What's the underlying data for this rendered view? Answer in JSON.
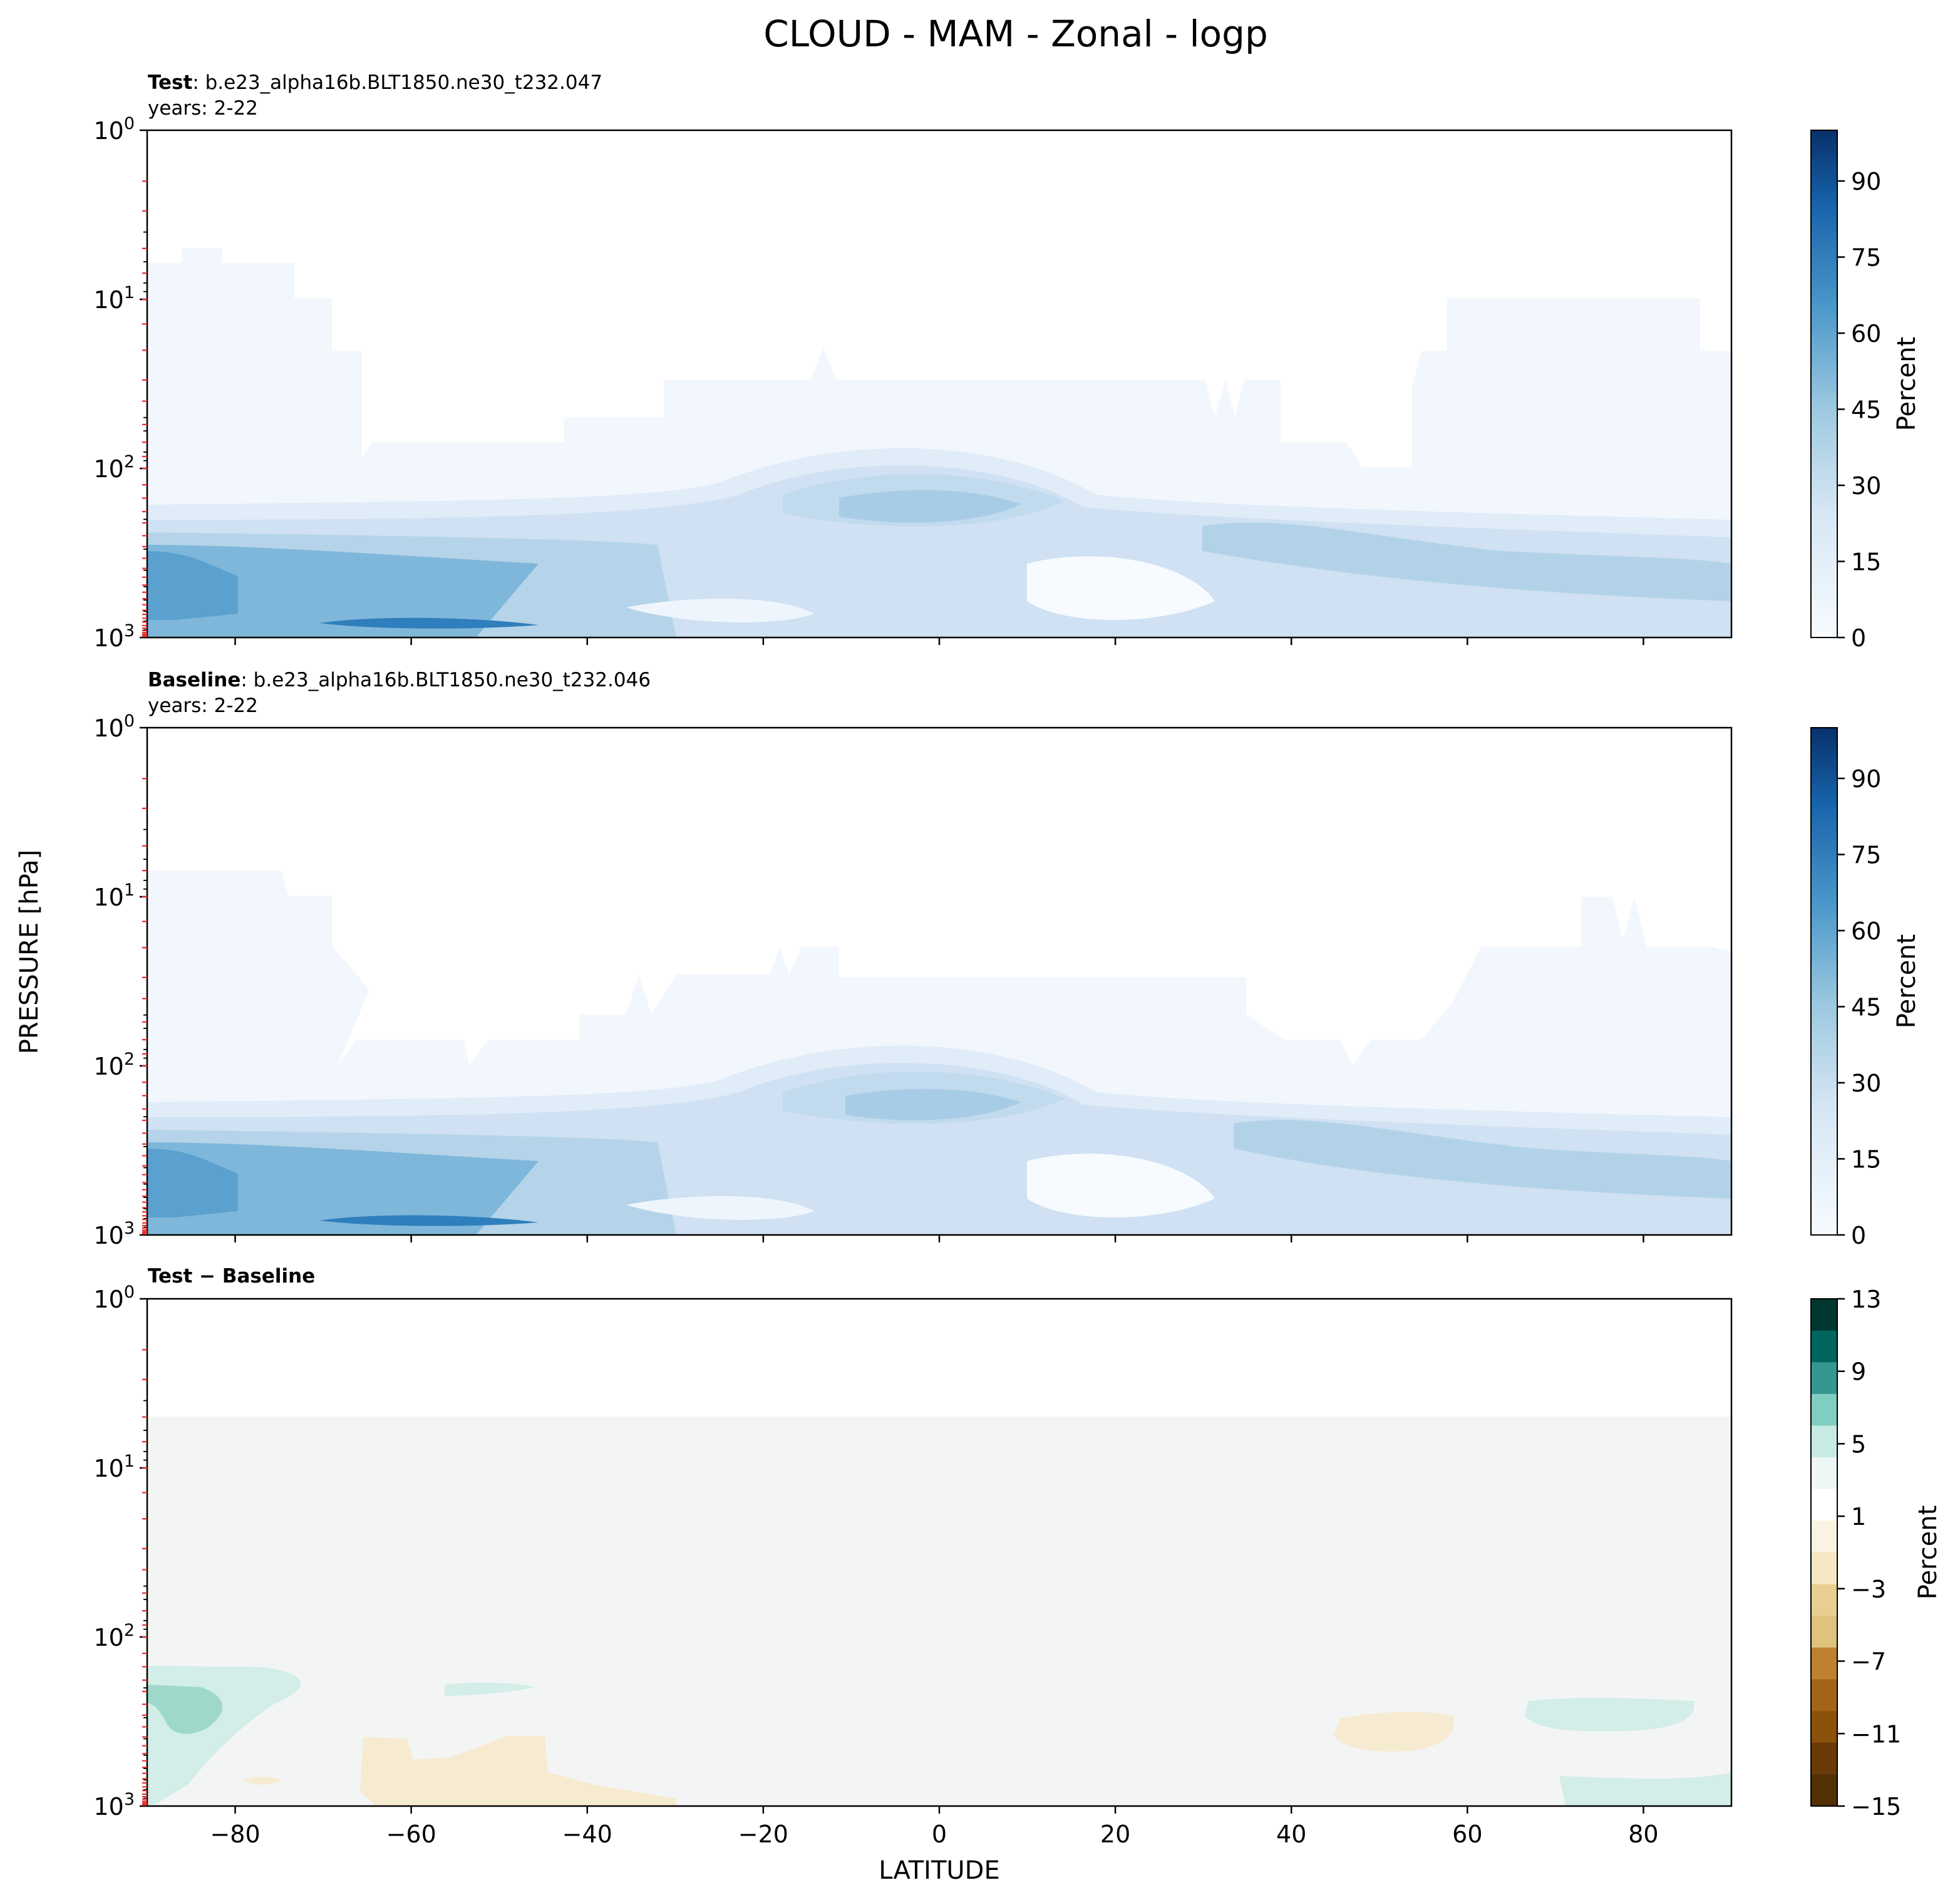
{
  "title": "CLOUD - MAM - Zonal - logp",
  "shared_axes": {
    "xlabel": "LATITUDE",
    "ylabel": "PRESSURE [hPa]",
    "x_ticks": [
      "−80",
      "−60",
      "−40",
      "−20",
      "0",
      "20",
      "40",
      "60",
      "80"
    ]
  },
  "chart_data": [
    {
      "type": "heatmap",
      "panel": "test",
      "title_bold": "Test",
      "title_rest": ": b.e23_alpha16b.BLT1850.ne30_t232.047",
      "subtitle": "years: 2-22",
      "xlim": [
        -90,
        90
      ],
      "ylim": [
        1000,
        1
      ],
      "y_scale": "log",
      "y_ticks": [
        "10",
        "10",
        "10",
        "10"
      ],
      "y_tick_exps": [
        "0",
        "1",
        "2",
        "3"
      ],
      "colormap": "Blues",
      "colorbar": {
        "label": "Percent",
        "ticks": [
          "0",
          "15",
          "30",
          "45",
          "60",
          "75",
          "90"
        ],
        "range": [
          0,
          100
        ],
        "levels": 20
      },
      "colors": [
        "#f7fbff",
        "#e3eef9",
        "#cfe1f2",
        "#b5d4e9",
        "#93c4df",
        "#6aaed6",
        "#4a98c9",
        "#2e7ebc",
        "#1764ab",
        "#084a91",
        "#08306b"
      ]
    },
    {
      "type": "heatmap",
      "panel": "baseline",
      "title_bold": "Baseline",
      "title_rest": ": b.e23_alpha16b.BLT1850.ne30_t232.046",
      "subtitle": "years: 2-22",
      "xlim": [
        -90,
        90
      ],
      "ylim": [
        1000,
        1
      ],
      "y_scale": "log",
      "y_ticks": [
        "10",
        "10",
        "10",
        "10"
      ],
      "y_tick_exps": [
        "0",
        "1",
        "2",
        "3"
      ],
      "colormap": "Blues",
      "colorbar": {
        "label": "Percent",
        "ticks": [
          "0",
          "15",
          "30",
          "45",
          "60",
          "75",
          "90"
        ],
        "range": [
          0,
          100
        ],
        "levels": 20
      },
      "colors": [
        "#f7fbff",
        "#e3eef9",
        "#cfe1f2",
        "#b5d4e9",
        "#93c4df",
        "#6aaed6",
        "#4a98c9",
        "#2e7ebc",
        "#1764ab",
        "#084a91",
        "#08306b"
      ]
    },
    {
      "type": "heatmap",
      "panel": "difference",
      "title_bold": "Test − Baseline",
      "title_rest": "",
      "subtitle": "",
      "xlim": [
        -90,
        90
      ],
      "ylim": [
        1000,
        1
      ],
      "y_scale": "log",
      "y_ticks": [
        "10",
        "10",
        "10",
        "10"
      ],
      "y_tick_exps": [
        "0",
        "1",
        "2",
        "3"
      ],
      "colormap": "BrBG",
      "colorbar": {
        "label": "Percent",
        "ticks": [
          "13",
          "9",
          "5",
          "1",
          "−3",
          "−7",
          "−11",
          "−15"
        ],
        "range": [
          -15,
          13
        ],
        "band_colors": [
          "#00372e",
          "#01665e",
          "#35978f",
          "#80cdc1",
          "#c7eae5",
          "#eef7f5",
          "#ffffff",
          "#fbf3e2",
          "#f6e8c3",
          "#e8cf91",
          "#dfc27d",
          "#bf812d",
          "#a36418",
          "#8c510a",
          "#6a3b08",
          "#543005"
        ]
      }
    }
  ]
}
